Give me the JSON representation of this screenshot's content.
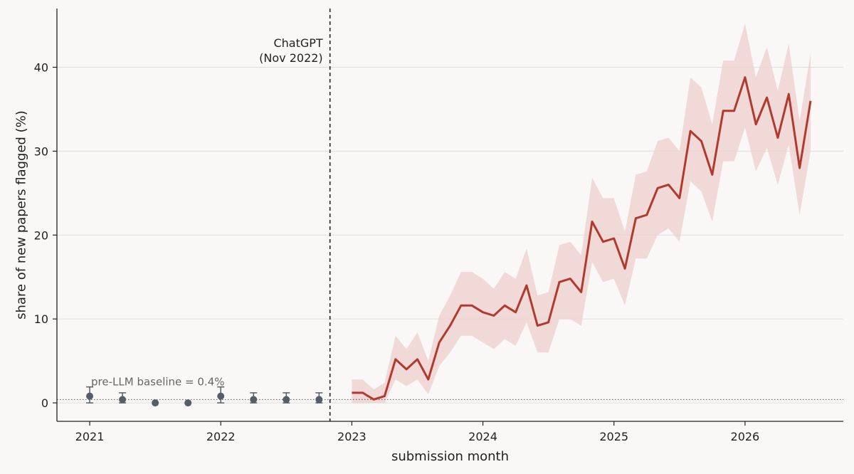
{
  "chart_data": {
    "type": "line",
    "xlabel": "submission month",
    "ylabel": "share of new papers flagged (%)",
    "xlim": [
      "2020-10",
      "2026-10"
    ],
    "ylim": [
      -2.2,
      47
    ],
    "x_ticks": [
      "2021",
      "2022",
      "2023",
      "2024",
      "2025",
      "2026"
    ],
    "y_ticks": [
      0,
      10,
      20,
      30,
      40
    ],
    "grid": "horizontal",
    "colors": {
      "post": "#b03a2e",
      "band": "#edd3d1",
      "pre": "#555d69",
      "vline": "#222222",
      "baseline": "#555555",
      "grid": "#dddddd"
    },
    "annotation": {
      "line1": "ChatGPT",
      "line2": "(Nov 2022)",
      "x": "2022-11"
    },
    "baseline": {
      "label": "pre-LLM baseline = 0.4%",
      "value": 0.4
    },
    "pre_llm_points": [
      {
        "x": "2021-01",
        "y": 0.8,
        "lo": 0.0,
        "hi": 1.9
      },
      {
        "x": "2021-04",
        "y": 0.4,
        "lo": 0.0,
        "hi": 1.2
      },
      {
        "x": "2021-07",
        "y": 0.0,
        "lo": 0.0,
        "hi": 0.0
      },
      {
        "x": "2021-10",
        "y": 0.0,
        "lo": 0.0,
        "hi": 0.0
      },
      {
        "x": "2022-01",
        "y": 0.8,
        "lo": 0.0,
        "hi": 1.9
      },
      {
        "x": "2022-04",
        "y": 0.4,
        "lo": 0.0,
        "hi": 1.2
      },
      {
        "x": "2022-07",
        "y": 0.4,
        "lo": 0.0,
        "hi": 1.2
      },
      {
        "x": "2022-10",
        "y": 0.4,
        "lo": 0.0,
        "hi": 1.2
      }
    ],
    "series": [
      {
        "x": [
          "2023-01",
          "2023-02",
          "2023-03",
          "2023-04",
          "2023-05",
          "2023-06",
          "2023-07",
          "2023-08",
          "2023-09",
          "2023-10",
          "2023-11",
          "2023-12",
          "2024-01",
          "2024-02",
          "2024-03",
          "2024-04",
          "2024-05",
          "2024-06",
          "2024-07",
          "2024-08",
          "2024-09",
          "2024-10",
          "2024-11",
          "2024-12",
          "2025-01",
          "2025-02",
          "2025-03",
          "2025-04",
          "2025-05",
          "2025-06",
          "2025-07",
          "2025-08",
          "2025-09",
          "2025-10",
          "2025-11",
          "2025-12",
          "2026-01",
          "2026-02",
          "2026-03",
          "2026-04",
          "2026-05",
          "2026-06",
          "2026-07"
        ],
        "values": [
          1.2,
          1.2,
          0.4,
          0.8,
          5.2,
          4.0,
          5.2,
          2.8,
          7.2,
          9.2,
          11.6,
          11.6,
          10.8,
          10.4,
          11.6,
          10.8,
          14.0,
          9.2,
          9.6,
          14.4,
          14.8,
          13.2,
          21.6,
          19.2,
          19.6,
          16.0,
          22.0,
          22.4,
          25.6,
          26.0,
          24.4,
          32.4,
          31.2,
          27.2,
          34.8,
          34.8,
          38.8,
          33.2,
          36.4,
          31.6,
          36.8,
          28.0,
          36.0
        ],
        "lo": [
          0.0,
          0.0,
          0.0,
          0.0,
          2.8,
          2.0,
          2.8,
          1.0,
          4.4,
          6.0,
          8.0,
          8.0,
          7.2,
          6.4,
          7.6,
          6.8,
          9.6,
          6.0,
          6.0,
          10.0,
          10.0,
          9.2,
          16.8,
          14.4,
          14.8,
          11.6,
          17.2,
          17.2,
          20.0,
          20.8,
          19.2,
          26.4,
          25.2,
          21.6,
          28.8,
          28.8,
          32.8,
          27.6,
          30.4,
          26.0,
          30.8,
          22.4,
          30.0
        ],
        "hi": [
          2.8,
          2.8,
          1.6,
          2.4,
          8.0,
          6.4,
          8.4,
          5.0,
          10.4,
          12.8,
          15.6,
          15.6,
          14.8,
          13.6,
          15.6,
          14.8,
          18.4,
          12.8,
          13.2,
          18.8,
          19.2,
          17.6,
          26.8,
          24.4,
          24.4,
          20.4,
          27.2,
          27.6,
          31.2,
          31.6,
          30.0,
          38.8,
          37.6,
          33.2,
          40.8,
          40.8,
          45.2,
          38.8,
          42.4,
          37.2,
          42.8,
          33.6,
          41.6
        ]
      }
    ]
  }
}
